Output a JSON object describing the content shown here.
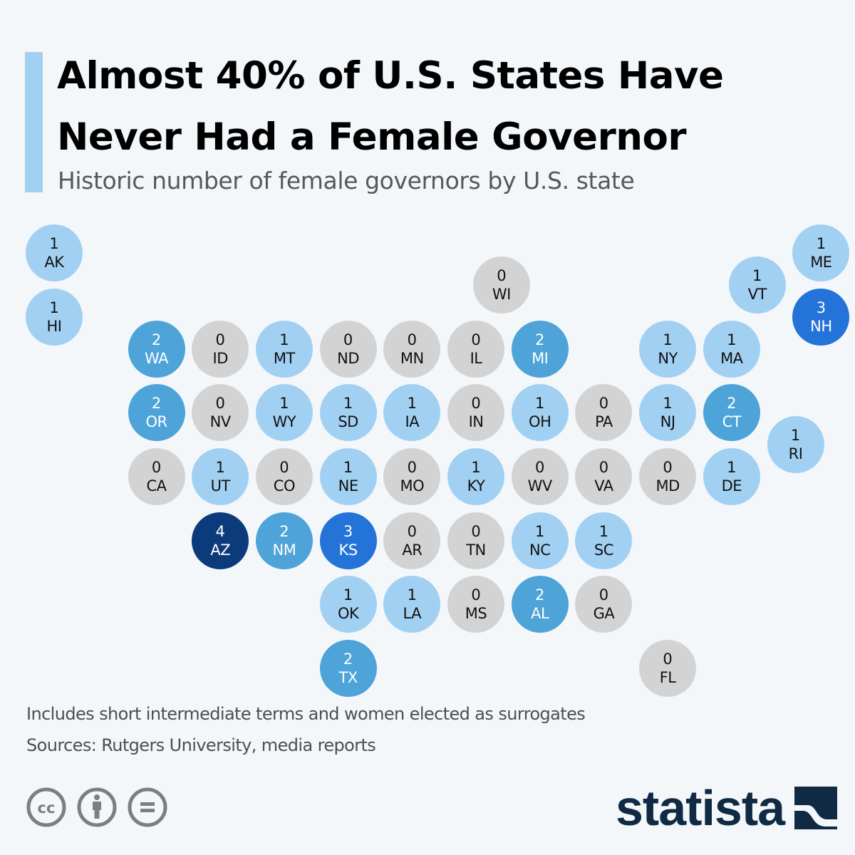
{
  "header": {
    "title": "Almost 40% of U.S. States Have Never Had a Female Governor",
    "subtitle": "Historic number of female governors by U.S. state"
  },
  "legend_colors": {
    "0": "#d3d3d3",
    "1": "#a2d0f3",
    "2": "#4ea3d8",
    "3": "#2373d8",
    "4": "#0c3b7b"
  },
  "map_data": {
    "type": "tile-map",
    "metric": "Historic number of female governors",
    "states": [
      {
        "abbr": "AK",
        "value": 1,
        "col": 0,
        "row": 0
      },
      {
        "abbr": "ME",
        "value": 1,
        "col": 12,
        "row": 0
      },
      {
        "abbr": "WI",
        "value": 0,
        "col": 7,
        "row": 0.5
      },
      {
        "abbr": "VT",
        "value": 1,
        "col": 11,
        "row": 0.5
      },
      {
        "abbr": "HI",
        "value": 1,
        "col": 0,
        "row": 1
      },
      {
        "abbr": "NH",
        "value": 3,
        "col": 12,
        "row": 1
      },
      {
        "abbr": "WA",
        "value": 2,
        "col": 1.6,
        "row": 1.5
      },
      {
        "abbr": "ID",
        "value": 0,
        "col": 2.6,
        "row": 1.5
      },
      {
        "abbr": "MT",
        "value": 1,
        "col": 3.6,
        "row": 1.5
      },
      {
        "abbr": "ND",
        "value": 0,
        "col": 4.6,
        "row": 1.5
      },
      {
        "abbr": "MN",
        "value": 0,
        "col": 5.6,
        "row": 1.5
      },
      {
        "abbr": "IL",
        "value": 0,
        "col": 6.6,
        "row": 1.5
      },
      {
        "abbr": "MI",
        "value": 2,
        "col": 7.6,
        "row": 1.5
      },
      {
        "abbr": "NY",
        "value": 1,
        "col": 9.6,
        "row": 1.5
      },
      {
        "abbr": "MA",
        "value": 1,
        "col": 10.6,
        "row": 1.5
      },
      {
        "abbr": "OR",
        "value": 2,
        "col": 1.6,
        "row": 2.5
      },
      {
        "abbr": "NV",
        "value": 0,
        "col": 2.6,
        "row": 2.5
      },
      {
        "abbr": "WY",
        "value": 1,
        "col": 3.6,
        "row": 2.5
      },
      {
        "abbr": "SD",
        "value": 1,
        "col": 4.6,
        "row": 2.5
      },
      {
        "abbr": "IA",
        "value": 1,
        "col": 5.6,
        "row": 2.5
      },
      {
        "abbr": "IN",
        "value": 0,
        "col": 6.6,
        "row": 2.5
      },
      {
        "abbr": "OH",
        "value": 1,
        "col": 7.6,
        "row": 2.5
      },
      {
        "abbr": "PA",
        "value": 0,
        "col": 8.6,
        "row": 2.5
      },
      {
        "abbr": "NJ",
        "value": 1,
        "col": 9.6,
        "row": 2.5
      },
      {
        "abbr": "CT",
        "value": 2,
        "col": 10.6,
        "row": 2.5
      },
      {
        "abbr": "RI",
        "value": 1,
        "col": 11.6,
        "row": 3
      },
      {
        "abbr": "CA",
        "value": 0,
        "col": 1.6,
        "row": 3.5
      },
      {
        "abbr": "UT",
        "value": 1,
        "col": 2.6,
        "row": 3.5
      },
      {
        "abbr": "CO",
        "value": 0,
        "col": 3.6,
        "row": 3.5
      },
      {
        "abbr": "NE",
        "value": 1,
        "col": 4.6,
        "row": 3.5
      },
      {
        "abbr": "MO",
        "value": 0,
        "col": 5.6,
        "row": 3.5
      },
      {
        "abbr": "KY",
        "value": 1,
        "col": 6.6,
        "row": 3.5
      },
      {
        "abbr": "WV",
        "value": 0,
        "col": 7.6,
        "row": 3.5
      },
      {
        "abbr": "VA",
        "value": 0,
        "col": 8.6,
        "row": 3.5
      },
      {
        "abbr": "MD",
        "value": 0,
        "col": 9.6,
        "row": 3.5
      },
      {
        "abbr": "DE",
        "value": 1,
        "col": 10.6,
        "row": 3.5
      },
      {
        "abbr": "AZ",
        "value": 4,
        "col": 2.6,
        "row": 4.5
      },
      {
        "abbr": "NM",
        "value": 2,
        "col": 3.6,
        "row": 4.5
      },
      {
        "abbr": "KS",
        "value": 3,
        "col": 4.6,
        "row": 4.5
      },
      {
        "abbr": "AR",
        "value": 0,
        "col": 5.6,
        "row": 4.5
      },
      {
        "abbr": "TN",
        "value": 0,
        "col": 6.6,
        "row": 4.5
      },
      {
        "abbr": "NC",
        "value": 1,
        "col": 7.6,
        "row": 4.5
      },
      {
        "abbr": "SC",
        "value": 1,
        "col": 8.6,
        "row": 4.5
      },
      {
        "abbr": "OK",
        "value": 1,
        "col": 4.6,
        "row": 5.5
      },
      {
        "abbr": "LA",
        "value": 1,
        "col": 5.6,
        "row": 5.5
      },
      {
        "abbr": "MS",
        "value": 0,
        "col": 6.6,
        "row": 5.5
      },
      {
        "abbr": "AL",
        "value": 2,
        "col": 7.6,
        "row": 5.5
      },
      {
        "abbr": "GA",
        "value": 0,
        "col": 8.6,
        "row": 5.5
      },
      {
        "abbr": "TX",
        "value": 2,
        "col": 4.6,
        "row": 6.5
      },
      {
        "abbr": "FL",
        "value": 0,
        "col": 9.6,
        "row": 6.5
      }
    ]
  },
  "footer": {
    "note": "Includes short intermediate terms and women elected as surrogates",
    "sources": "Sources: Rutgers University, media reports",
    "license_icons": [
      "creative-commons-icon",
      "attribution-icon",
      "no-derivatives-icon"
    ],
    "brand": "statista"
  }
}
